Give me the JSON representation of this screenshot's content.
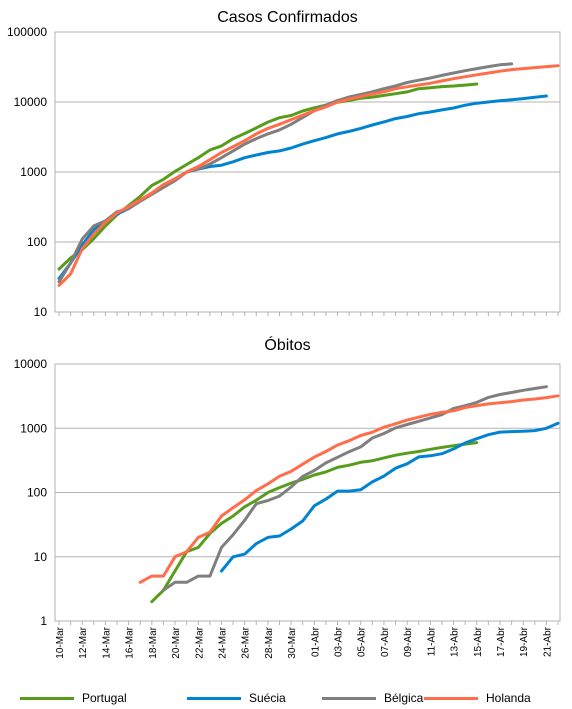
{
  "chart_data": [
    {
      "type": "line",
      "title": "Casos Confirmados",
      "yscale": "log",
      "ylim": [
        10,
        100000
      ],
      "yticks": [
        "10",
        "100",
        "1000",
        "10000",
        "100000"
      ],
      "x": [
        "10-Mar",
        "11-Mar",
        "12-Mar",
        "13-Mar",
        "14-Mar",
        "15-Mar",
        "16-Mar",
        "17-Mar",
        "18-Mar",
        "19-Mar",
        "20-Mar",
        "21-Mar",
        "22-Mar",
        "23-Mar",
        "24-Mar",
        "25-Mar",
        "26-Mar",
        "27-Mar",
        "28-Mar",
        "29-Mar",
        "30-Mar",
        "31-Mar",
        "01-Abr",
        "02-Abr",
        "03-Abr",
        "04-Abr",
        "05-Abr",
        "06-Abr",
        "07-Abr",
        "08-Abr",
        "09-Abr",
        "10-Abr",
        "11-Abr",
        "12-Abr",
        "13-Abr",
        "14-Abr",
        "15-Abr",
        "16-Abr",
        "17-Abr",
        "18-Abr",
        "19-Abr",
        "20-Abr",
        "21-Abr",
        "22-Abr"
      ],
      "series": [
        {
          "name": "Portugal",
          "color": "#579d1c",
          "values": [
            41,
            59,
            78,
            112,
            169,
            245,
            331,
            448,
            642,
            785,
            1020,
            1280,
            1600,
            2060,
            2362,
            2995,
            3544,
            4268,
            5170,
            5962,
            6408,
            7443,
            8251,
            9034,
            9886,
            10524,
            11278,
            11730,
            12442,
            13141,
            13956,
            15472,
            15987,
            16585,
            16934,
            17448,
            18091,
            null,
            null,
            null,
            null,
            null,
            null,
            null
          ]
        },
        {
          "name": "Suécia",
          "color": "#0084d1",
          "values": [
            30,
            50,
            90,
            150,
            200,
            250,
            300,
            390,
            500,
            650,
            800,
            1000,
            1100,
            1200,
            1250,
            1400,
            1600,
            1750,
            1900,
            2000,
            2200,
            2500,
            2800,
            3100,
            3500,
            3800,
            4200,
            4700,
            5200,
            5800,
            6200,
            6800,
            7200,
            7700,
            8200,
            9000,
            9600,
            10000,
            10400,
            10800,
            11200,
            11700,
            12200,
            null
          ]
        },
        {
          "name": "Bélgica",
          "color": "#7f7f7f",
          "values": [
            27,
            50,
            110,
            170,
            200,
            270,
            300,
            380,
            480,
            600,
            750,
            1000,
            1100,
            1300,
            1600,
            2000,
            2500,
            3000,
            3500,
            4000,
            4800,
            6000,
            7500,
            9000,
            10500,
            11800,
            12800,
            14000,
            15500,
            17000,
            19000,
            20500,
            22000,
            24000,
            26000,
            28000,
            30000,
            32000,
            34000,
            35000,
            null,
            null,
            null,
            null
          ]
        },
        {
          "name": "Holanda",
          "color": "#ff6d4a",
          "values": [
            24,
            35,
            80,
            130,
            190,
            260,
            320,
            400,
            500,
            660,
            800,
            1000,
            1200,
            1500,
            1900,
            2300,
            2800,
            3500,
            4200,
            4800,
            5600,
            6500,
            7500,
            8500,
            10000,
            11000,
            12000,
            13000,
            14000,
            15500,
            16500,
            17500,
            18500,
            20000,
            21500,
            23000,
            24500,
            26000,
            27500,
            29000,
            30000,
            31000,
            32000,
            33000
          ]
        }
      ]
    },
    {
      "type": "line",
      "title": "Óbitos",
      "yscale": "log",
      "ylim": [
        1,
        10000
      ],
      "yticks": [
        "1",
        "10",
        "100",
        "1000",
        "10000"
      ],
      "x": [
        "10-Mar",
        "11-Mar",
        "12-Mar",
        "13-Mar",
        "14-Mar",
        "15-Mar",
        "16-Mar",
        "17-Mar",
        "18-Mar",
        "19-Mar",
        "20-Mar",
        "21-Mar",
        "22-Mar",
        "23-Mar",
        "24-Mar",
        "25-Mar",
        "26-Mar",
        "27-Mar",
        "28-Mar",
        "29-Mar",
        "30-Mar",
        "31-Mar",
        "01-Abr",
        "02-Abr",
        "03-Abr",
        "04-Abr",
        "05-Abr",
        "06-Abr",
        "07-Abr",
        "08-Abr",
        "09-Abr",
        "10-Abr",
        "11-Abr",
        "12-Abr",
        "13-Abr",
        "14-Abr",
        "15-Abr",
        "16-Abr",
        "17-Abr",
        "18-Abr",
        "19-Abr",
        "20-Abr",
        "21-Abr",
        "22-Abr"
      ],
      "xticks": [
        "10-Mar",
        "12-Mar",
        "14-Mar",
        "16-Mar",
        "18-Mar",
        "20-Mar",
        "22-Mar",
        "24-Mar",
        "26-Mar",
        "28-Mar",
        "30-Mar",
        "01-Abr",
        "03-Abr",
        "05-Abr",
        "07-Abr",
        "09-Abr",
        "11-Abr",
        "13-Abr",
        "15-Abr",
        "17-Abr",
        "19-Abr",
        "21-Abr"
      ],
      "series": [
        {
          "name": "Portugal",
          "color": "#579d1c",
          "values": [
            null,
            null,
            null,
            null,
            null,
            null,
            null,
            null,
            2,
            3,
            6,
            12,
            14,
            23,
            33,
            43,
            60,
            76,
            100,
            119,
            140,
            160,
            187,
            209,
            246,
            266,
            295,
            311,
            345,
            380,
            409,
            435,
            470,
            504,
            535,
            567,
            599,
            null,
            null,
            null,
            null,
            null,
            null,
            null
          ]
        },
        {
          "name": "Suécia",
          "color": "#0084d1",
          "values": [
            null,
            null,
            null,
            null,
            null,
            null,
            null,
            null,
            null,
            null,
            null,
            null,
            null,
            null,
            6,
            10,
            11,
            16,
            20,
            21,
            27,
            36,
            62,
            79,
            105,
            105,
            110,
            146,
            180,
            239,
            280,
            358,
            373,
            401,
            477,
            591,
            687,
            793,
            870,
            887,
            899,
            919,
            1000,
            1200
          ]
        },
        {
          "name": "Bélgica",
          "color": "#7f7f7f",
          "values": [
            null,
            null,
            null,
            null,
            null,
            null,
            null,
            null,
            null,
            3,
            4,
            4,
            5,
            5,
            14,
            22,
            37,
            67,
            75,
            88,
            122,
            178,
            220,
            289,
            353,
            431,
            513,
            705,
            828,
            1011,
            1143,
            1283,
            1447,
            1632,
            2035,
            2240,
            2523,
            3019,
            3346,
            3600,
            3903,
            4157,
            4440,
            null
          ]
        },
        {
          "name": "Holanda",
          "color": "#ff6d4a",
          "values": [
            null,
            null,
            null,
            null,
            null,
            null,
            null,
            4,
            5,
            5,
            10,
            12,
            20,
            24,
            43,
            58,
            77,
            107,
            136,
            179,
            213,
            276,
            356,
            434,
            546,
            639,
            771,
            864,
            1039,
            1173,
            1339,
            1487,
            1651,
            1766,
            1867,
            2101,
            2248,
            2396,
            2500,
            2600,
            2750,
            2850,
            3000,
            3200
          ]
        }
      ]
    }
  ],
  "legend": [
    {
      "label": "Portugal",
      "color": "#579d1c"
    },
    {
      "label": "Suécia",
      "color": "#0084d1"
    },
    {
      "label": "Bélgica",
      "color": "#7f7f7f"
    },
    {
      "label": "Holanda",
      "color": "#ff6d4a"
    }
  ]
}
